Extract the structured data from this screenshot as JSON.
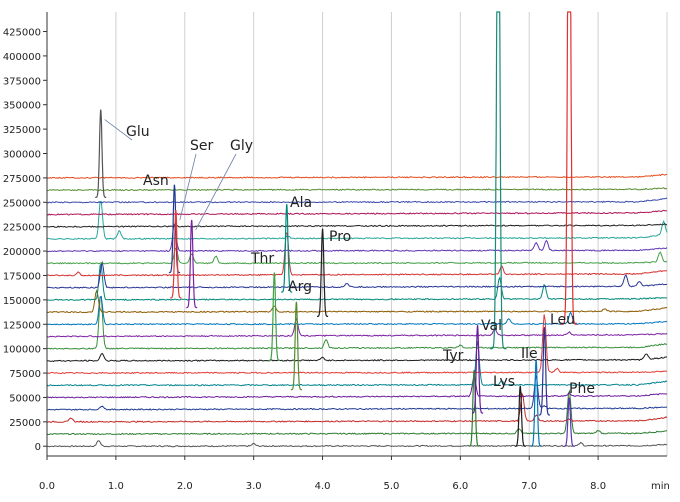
{
  "chart_data": {
    "type": "line",
    "title": "",
    "xlabel": "",
    "ylabel": "",
    "x_unit": "min",
    "xlim": [
      0.0,
      9.0
    ],
    "ylim": [
      -10000,
      445000
    ],
    "x_ticks": [
      "0.0",
      "1.0",
      "2.0",
      "3.0",
      "4.0",
      "5.0",
      "6.0",
      "7.0",
      "8.0"
    ],
    "y_ticks": [
      "0",
      "25000",
      "50000",
      "75000",
      "100000",
      "125000",
      "150000",
      "175000",
      "200000",
      "225000",
      "250000",
      "275000",
      "300000",
      "325000",
      "350000",
      "375000",
      "400000",
      "425000"
    ],
    "grid": "vertical",
    "legend": "none",
    "trace_count": 23,
    "trace_offset_start": 0,
    "trace_offset_step": 12500,
    "colors": [
      "#555555",
      "#2e7d32",
      "#c62828",
      "#1f3a93",
      "#6a1b9a",
      "#00838f",
      "#e53935",
      "#1b1b1b",
      "#388e3c",
      "#7b1fa2",
      "#0277bd",
      "#8e5a00",
      "#00897b",
      "#283593",
      "#d32f2f",
      "#43a047",
      "#5e35b1",
      "#26a69a",
      "#212121",
      "#ad1457",
      "#3949ab",
      "#558b2f",
      "#e64a19"
    ],
    "peaks": [
      {
        "name": "Glu",
        "x": 0.78,
        "height": 345000
      },
      {
        "name": "Asn",
        "x": 1.85,
        "height": 268000
      },
      {
        "name": "Ser",
        "x": 1.87,
        "height": 242000
      },
      {
        "name": "Gly",
        "x": 2.1,
        "height": 232000
      },
      {
        "name": "Ala",
        "x": 3.48,
        "height": 248000
      },
      {
        "name": "Thr",
        "x": 3.3,
        "height": 178000
      },
      {
        "name": "Pro",
        "x": 4.0,
        "height": 223000
      },
      {
        "name": "Arg",
        "x": 3.62,
        "height": 148000
      },
      {
        "name": "Tyr",
        "x": 6.2,
        "height": 78000
      },
      {
        "name": "Val",
        "x": 6.25,
        "height": 124000
      },
      {
        "name": "Lys",
        "x": 6.87,
        "height": 62000
      },
      {
        "name": "Ile",
        "x": 7.1,
        "height": 88000
      },
      {
        "name": "Leu",
        "x": 7.22,
        "height": 122000
      },
      {
        "name": "Phe",
        "x": 7.58,
        "height": 50000
      }
    ]
  }
}
